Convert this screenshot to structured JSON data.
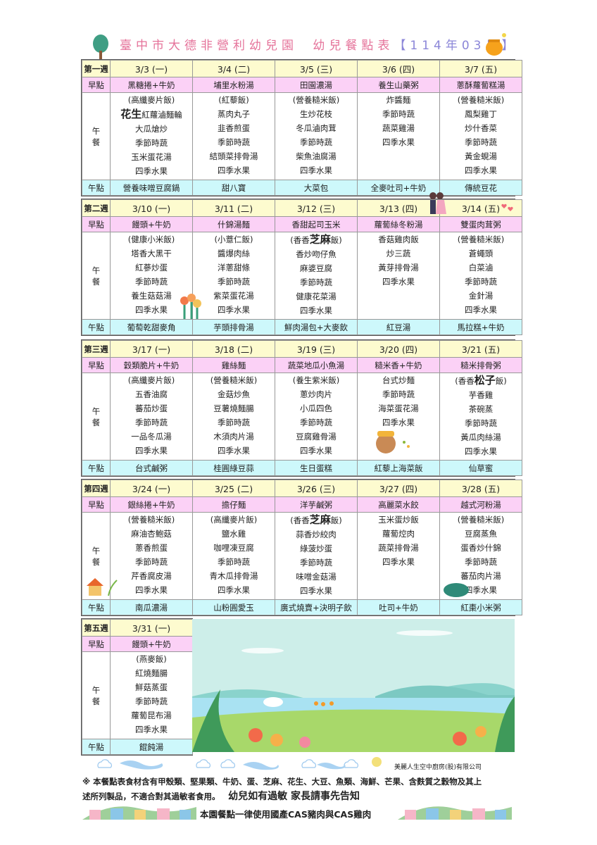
{
  "header": {
    "school": "臺中市大德非營利幼兒園",
    "menu_title": "幼兒餐點表",
    "month": "【114年03月】"
  },
  "row_labels": {
    "breakfast": "早點",
    "lunch": [
      "午",
      "餐"
    ],
    "snack": "午點"
  },
  "weeks": [
    {
      "label": "第一週",
      "days": [
        {
          "date": "3/3 (一)",
          "breakfast": "黑糖捲+牛奶",
          "lunch": [
            "(高纖麥片飯)",
            [
              "",
              "花生",
              "紅蘿滷麵輪"
            ],
            "大瓜熗炒",
            "季節時蔬",
            "玉米蛋花湯",
            "四季水果"
          ],
          "snack": "營養味噌豆腐鍋"
        },
        {
          "date": "3/4 (二)",
          "breakfast": "埔里水粉湯",
          "lunch": [
            "(紅藜飯)",
            "蒸肉丸子",
            "韭香煎蛋",
            "季節時蔬",
            "結頭菜排骨湯",
            "四季水果"
          ],
          "snack": "甜八寶"
        },
        {
          "date": "3/5 (三)",
          "breakfast": "田園濃湯",
          "lunch": [
            "(營養糙米飯)",
            "生炒花枝",
            "冬瓜滷肉茸",
            "季節時蔬",
            "柴魚油腐湯",
            "四季水果"
          ],
          "snack": "大菜包"
        },
        {
          "date": "3/6 (四)",
          "breakfast": "養生山藥粥",
          "lunch": [
            "炸醬麵",
            "季節時蔬",
            "蔬菜雞湯",
            "四季水果"
          ],
          "snack": "全麥吐司+牛奶"
        },
        {
          "date": "3/7 (五)",
          "breakfast": "蔥酥蘿蔔糕湯",
          "lunch": [
            "(營養糙米飯)",
            "鳳梨雞丁",
            "炒什香菜",
            "季節時蔬",
            "黃金蜆湯",
            "四季水果"
          ],
          "snack": "傳統豆花"
        }
      ]
    },
    {
      "label": "第二週",
      "days": [
        {
          "date": "3/10 (一)",
          "breakfast": "饅頭+牛奶",
          "lunch": [
            "(健康小米飯)",
            "塔香大黑干",
            "紅蔘炒蛋",
            "季節時蔬",
            "養生菇菇湯",
            "四季水果"
          ],
          "snack": "葡萄乾甜麥角"
        },
        {
          "date": "3/11 (二)",
          "breakfast": "什錦湯麵",
          "lunch": [
            "(小薏仁飯)",
            "醬爆肉絲",
            "洋蔥甜條",
            "季節時蔬",
            "紫菜蛋花湯",
            "四季水果"
          ],
          "snack": "芋頭排骨湯"
        },
        {
          "date": "3/12 (三)",
          "breakfast": "香甜起司玉米",
          "lunch": [
            [
              "(香香",
              "芝麻",
              "飯)"
            ],
            "香炒吻仔魚",
            "麻婆豆腐",
            "季節時蔬",
            "健康花菜湯",
            "四季水果"
          ],
          "snack": "鮮肉湯包+大麥飲"
        },
        {
          "date": "3/13 (四)",
          "breakfast": "蘿蔔絲冬粉湯",
          "lunch": [
            "香菇雞肉飯",
            "炒三蔬",
            "黃芽排骨湯",
            "四季水果"
          ],
          "snack": "紅豆湯"
        },
        {
          "date": "3/14 (五)",
          "breakfast": "雙蛋肉茸粥",
          "lunch": [
            "(營養糙米飯)",
            "蒼蠅頭",
            "白菜滷",
            "季節時蔬",
            "金針湯",
            "四季水果"
          ],
          "snack": "馬拉糕+牛奶"
        }
      ]
    },
    {
      "label": "第三週",
      "days": [
        {
          "date": "3/17 (一)",
          "breakfast": "穀類脆片+牛奶",
          "lunch": [
            "(高纖麥片飯)",
            "五香油腐",
            "蕃茄炒蛋",
            "季節時蔬",
            "一品冬瓜湯",
            "四季水果"
          ],
          "snack": "台式鹹粥"
        },
        {
          "date": "3/18 (二)",
          "breakfast": "雞絲麵",
          "lunch": [
            "(營養糙米飯)",
            "金菇炒魚",
            "豆薯燒麵腸",
            "季節時蔬",
            "木須肉片湯",
            "四季水果"
          ],
          "snack": "桂圓綠豆蒜"
        },
        {
          "date": "3/19 (三)",
          "breakfast": "蔬菜地瓜小魚湯",
          "lunch": [
            "(養生紫米飯)",
            "蔥炒肉片",
            "小瓜四色",
            "季節時蔬",
            "豆腐雞骨湯",
            "四季水果"
          ],
          "snack": "生日蛋糕"
        },
        {
          "date": "3/20 (四)",
          "breakfast": "糙米香+牛奶",
          "lunch": [
            "台式炒麵",
            "季節時蔬",
            "海菜蛋花湯",
            "四季水果"
          ],
          "snack": "紅藜上海菜飯"
        },
        {
          "date": "3/21 (五)",
          "breakfast": "糙米排骨粥",
          "lunch": [
            [
              "(香香",
              "松子",
              "飯)"
            ],
            "芋香雞",
            "茶碗蒸",
            "季節時蔬",
            "黃瓜肉絲湯",
            "四季水果"
          ],
          "snack": "仙草蜜"
        }
      ]
    },
    {
      "label": "第四週",
      "days": [
        {
          "date": "3/24 (一)",
          "breakfast": "銀絲捲+牛奶",
          "lunch": [
            "(營養糙米飯)",
            "麻油杏鮑菇",
            "蔥香煎蛋",
            "季節時蔬",
            "芹香腐皮湯",
            "四季水果"
          ],
          "snack": "南瓜濃湯"
        },
        {
          "date": "3/25 (二)",
          "breakfast": "擔仔麵",
          "lunch": [
            "(高纖麥片飯)",
            "鹽水雞",
            "咖哩凍豆腐",
            "季節時蔬",
            "青木瓜排骨湯",
            "四季水果"
          ],
          "snack": "山粉圓愛玉"
        },
        {
          "date": "3/26 (三)",
          "breakfast": "洋芋鹹粥",
          "lunch": [
            [
              "(香香",
              "芝麻",
              "飯)"
            ],
            "蒜香炒絞肉",
            "綠菠炒蛋",
            "季節時蔬",
            "味噌金菇湯",
            "四季水果"
          ],
          "snack": "廣式燒賣+決明子飲"
        },
        {
          "date": "3/27 (四)",
          "breakfast": "高麗菜水餃",
          "lunch": [
            "玉米蛋炒飯",
            "蘿蔔焢肉",
            "蔬菜排骨湯",
            "四季水果"
          ],
          "snack": "吐司+牛奶"
        },
        {
          "date": "3/28 (五)",
          "breakfast": "越式河粉湯",
          "lunch": [
            "(營養糙米飯)",
            "豆腐蒸魚",
            "蛋香炒什錦",
            "季節時蔬",
            "蕃茄肉片湯",
            "四季水果"
          ],
          "snack": "紅棗小米粥"
        }
      ]
    },
    {
      "label": "第五週",
      "days": [
        {
          "date": "3/31 (一)",
          "breakfast": "饅頭+牛奶",
          "lunch": [
            "(燕麥飯)",
            "紅燒麵腸",
            "鮮菇蒸蛋",
            "季節時蔬",
            "蘿蔔昆布湯",
            "四季水果"
          ],
          "snack": "餛飩湯"
        }
      ]
    }
  ],
  "footer": {
    "company": "美麗人生空中廚房(股)有限公司",
    "allergen_note_1": "※ 本餐點表食材含有甲殼類、堅果類、牛奶、蛋、芝麻、花生、大豆、魚類、海鮮、芒果、含麩質之穀物及其上",
    "allergen_note_2": "述所列製品，不適合對其過敏者食用。",
    "allergen_emphasis": "幼兒如有過敏 家長請事先告知",
    "cas_note": "本園餐點一律使用國產CAS豬肉與CAS雞肉"
  },
  "colors": {
    "header_row": "#fdfbcf",
    "breakfast_row": "#fbd1f6",
    "snack_row": "#cdf8fb",
    "title": "#e5739a"
  }
}
